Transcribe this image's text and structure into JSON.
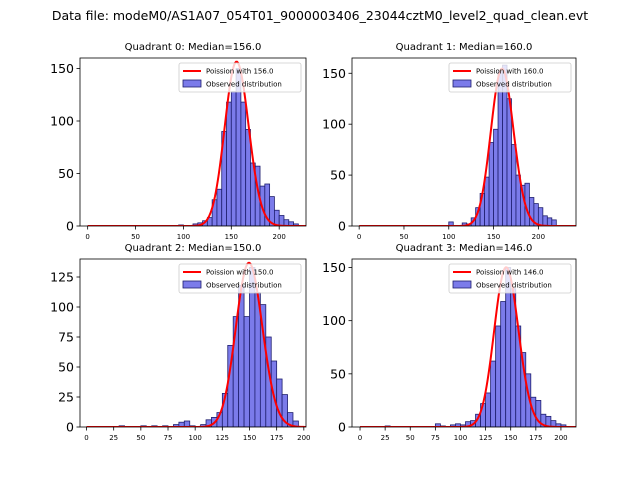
{
  "figure": {
    "suptitle": "Data file: modeM0/AS1A07_054T01_9000003406_23044cztM0_level2_quad_clean.evt"
  },
  "colors": {
    "bar_fill": "#7b7bea",
    "bar_edge": "#1e1e6e",
    "poisson_line": "#ff0000",
    "axes": "#000000",
    "background": "#ffffff"
  },
  "chart_data": [
    {
      "type": "bar",
      "title": "Quadrant 0: Median=156.0",
      "xlim": [
        -8,
        228
      ],
      "ylim": [
        0,
        160
      ],
      "xticks": [
        0,
        50,
        100,
        150,
        200
      ],
      "xtick_labels": [
        "0",
        "50",
        "100",
        "150",
        "200"
      ],
      "yticks": [
        0,
        50,
        100,
        150
      ],
      "ytick_labels": [
        "0",
        "50",
        "100",
        "150"
      ],
      "legend": {
        "position": "top-right",
        "entries": [
          "Poission with 156.0",
          "Observed distribution"
        ]
      },
      "poisson_mean": 156.0,
      "poisson_scale": 4900,
      "bar_width": 5,
      "bars": [
        [
          95,
          1
        ],
        [
          110,
          2
        ],
        [
          115,
          3
        ],
        [
          120,
          5
        ],
        [
          125,
          8
        ],
        [
          130,
          25
        ],
        [
          135,
          35
        ],
        [
          140,
          90
        ],
        [
          145,
          118
        ],
        [
          150,
          128
        ],
        [
          155,
          150
        ],
        [
          160,
          118
        ],
        [
          165,
          92
        ],
        [
          170,
          60
        ],
        [
          175,
          57
        ],
        [
          180,
          38
        ],
        [
          185,
          40
        ],
        [
          190,
          28
        ],
        [
          195,
          15
        ],
        [
          200,
          10
        ],
        [
          205,
          6
        ],
        [
          210,
          4
        ],
        [
          215,
          2
        ]
      ]
    },
    {
      "type": "bar",
      "title": "Quadrant 1: Median=160.0",
      "xlim": [
        -8,
        242
      ],
      "ylim": [
        0,
        165
      ],
      "xticks": [
        0,
        50,
        100,
        150,
        200
      ],
      "xtick_labels": [
        "0",
        "50",
        "100",
        "150",
        "200"
      ],
      "yticks": [
        0,
        50,
        100,
        150
      ],
      "ytick_labels": [
        "0",
        "50",
        "100",
        "150"
      ],
      "legend": {
        "position": "top-right",
        "entries": [
          "Poission with 160.0",
          "Observed distribution"
        ]
      },
      "poisson_mean": 160.0,
      "poisson_scale": 4900,
      "bar_width": 5,
      "bars": [
        [
          100,
          4
        ],
        [
          115,
          3
        ],
        [
          120,
          2
        ],
        [
          125,
          8
        ],
        [
          130,
          18
        ],
        [
          135,
          32
        ],
        [
          140,
          48
        ],
        [
          145,
          82
        ],
        [
          150,
          95
        ],
        [
          155,
          152
        ],
        [
          160,
          158
        ],
        [
          165,
          125
        ],
        [
          170,
          80
        ],
        [
          175,
          50
        ],
        [
          180,
          40
        ],
        [
          185,
          42
        ],
        [
          190,
          28
        ],
        [
          195,
          22
        ],
        [
          200,
          18
        ],
        [
          205,
          10
        ],
        [
          210,
          8
        ],
        [
          215,
          6
        ]
      ]
    },
    {
      "type": "bar",
      "title": "Quadrant 2: Median=150.0",
      "xlim": [
        -6,
        202
      ],
      "ylim": [
        0,
        140
      ],
      "xticks": [
        0,
        25,
        50,
        75,
        100,
        125,
        150,
        175,
        200
      ],
      "xtick_labels": [
        "0",
        "25",
        "50",
        "75",
        "100",
        "125",
        "150",
        "175",
        "200"
      ],
      "yticks": [
        0,
        25,
        50,
        75,
        100,
        125
      ],
      "ytick_labels": [
        "0",
        "25",
        "50",
        "75",
        "100",
        "125"
      ],
      "legend": {
        "position": "top-right",
        "entries": [
          "Poission with 150.0",
          "Observed distribution"
        ]
      },
      "poisson_mean": 150.0,
      "poisson_scale": 4200,
      "bar_width": 5,
      "bars": [
        [
          30,
          1
        ],
        [
          50,
          1
        ],
        [
          60,
          1
        ],
        [
          70,
          1
        ],
        [
          80,
          2
        ],
        [
          85,
          4
        ],
        [
          90,
          5
        ],
        [
          95,
          1
        ],
        [
          105,
          2
        ],
        [
          110,
          6
        ],
        [
          115,
          8
        ],
        [
          120,
          12
        ],
        [
          125,
          28
        ],
        [
          130,
          68
        ],
        [
          135,
          92
        ],
        [
          140,
          118
        ],
        [
          145,
          92
        ],
        [
          150,
          133
        ],
        [
          155,
          112
        ],
        [
          160,
          102
        ],
        [
          165,
          75
        ],
        [
          170,
          55
        ],
        [
          175,
          40
        ],
        [
          180,
          27
        ],
        [
          185,
          12
        ],
        [
          190,
          5
        ]
      ]
    },
    {
      "type": "bar",
      "title": "Quadrant 3: Median=146.0",
      "xlim": [
        -8,
        215
      ],
      "ylim": [
        0,
        158
      ],
      "xticks": [
        0,
        25,
        50,
        75,
        100,
        125,
        150,
        175,
        200
      ],
      "xtick_labels": [
        "0",
        "25",
        "50",
        "75",
        "100",
        "125",
        "150",
        "175",
        "200"
      ],
      "yticks": [
        0,
        50,
        100,
        150
      ],
      "ytick_labels": [
        "0",
        "50",
        "100",
        "150"
      ],
      "legend": {
        "position": "top-right",
        "entries": [
          "Poission with 146.0",
          "Observed distribution"
        ]
      },
      "poisson_mean": 146.0,
      "poisson_scale": 4550,
      "bar_width": 5,
      "bars": [
        [
          25,
          1
        ],
        [
          75,
          3
        ],
        [
          80,
          1
        ],
        [
          90,
          2
        ],
        [
          95,
          3
        ],
        [
          100,
          2
        ],
        [
          105,
          5
        ],
        [
          110,
          6
        ],
        [
          115,
          12
        ],
        [
          120,
          22
        ],
        [
          125,
          32
        ],
        [
          130,
          62
        ],
        [
          135,
          95
        ],
        [
          140,
          118
        ],
        [
          145,
          150
        ],
        [
          150,
          130
        ],
        [
          155,
          95
        ],
        [
          160,
          70
        ],
        [
          165,
          50
        ],
        [
          170,
          28
        ],
        [
          175,
          25
        ],
        [
          180,
          12
        ],
        [
          185,
          10
        ],
        [
          190,
          6
        ],
        [
          195,
          3
        ],
        [
          200,
          2
        ]
      ]
    }
  ]
}
